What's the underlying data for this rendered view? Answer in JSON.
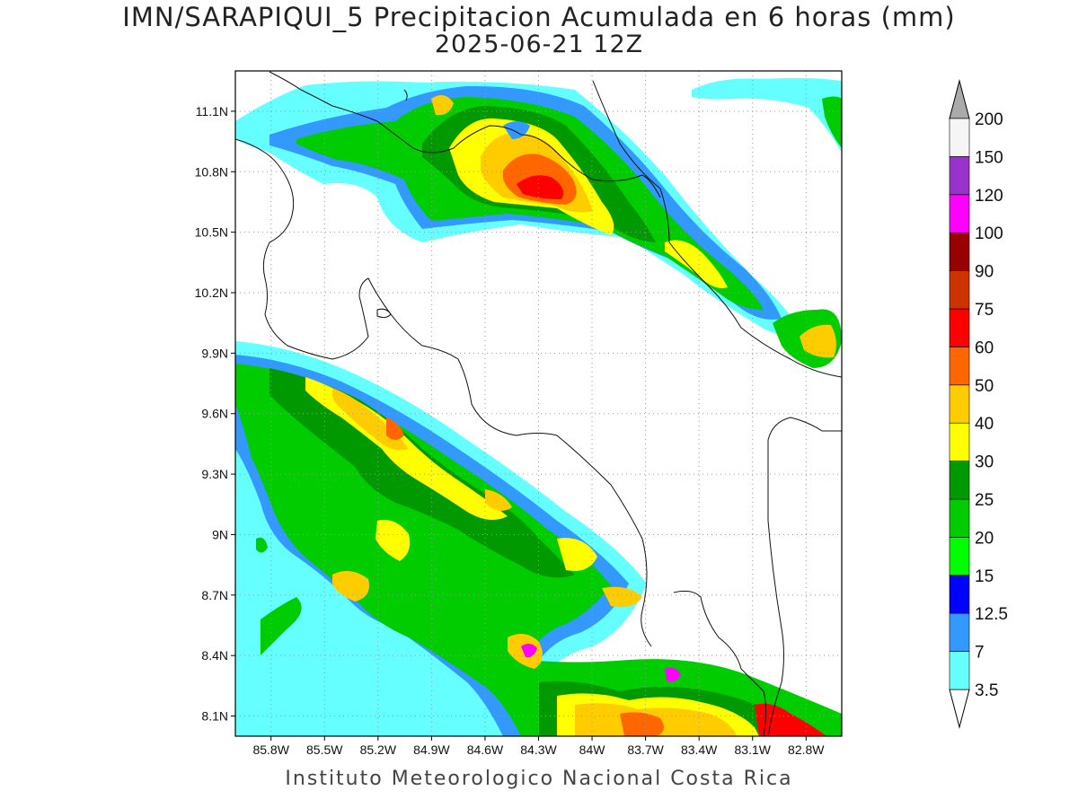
{
  "title": "IMN/SARAPIQUI_5 Precipitacion Acumulada en 6 horas (mm)",
  "subtitle": "2025-06-21 12Z",
  "credit": "Instituto Meteorologico Nacional Costa Rica",
  "lon_range": [
    -86.0,
    -82.6
  ],
  "lat_range": [
    8.0,
    11.3
  ],
  "lon_ticks": [
    {
      "v": -85.8,
      "label": "85.8W"
    },
    {
      "v": -85.5,
      "label": "85.5W"
    },
    {
      "v": -85.2,
      "label": "85.2W"
    },
    {
      "v": -84.9,
      "label": "84.9W"
    },
    {
      "v": -84.6,
      "label": "84.6W"
    },
    {
      "v": -84.3,
      "label": "84.3W"
    },
    {
      "v": -84.0,
      "label": "84W"
    },
    {
      "v": -83.7,
      "label": "83.7W"
    },
    {
      "v": -83.4,
      "label": "83.4W"
    },
    {
      "v": -83.1,
      "label": "83.1W"
    },
    {
      "v": -82.8,
      "label": "82.8W"
    }
  ],
  "lat_ticks": [
    {
      "v": 8.1,
      "label": "8.1N"
    },
    {
      "v": 8.4,
      "label": "8.4N"
    },
    {
      "v": 8.7,
      "label": "8.7N"
    },
    {
      "v": 9.0,
      "label": "9N"
    },
    {
      "v": 9.3,
      "label": "9.3N"
    },
    {
      "v": 9.6,
      "label": "9.6N"
    },
    {
      "v": 9.9,
      "label": "9.9N"
    },
    {
      "v": 10.2,
      "label": "10.2N"
    },
    {
      "v": 10.5,
      "label": "10.5N"
    },
    {
      "v": 10.8,
      "label": "10.8N"
    },
    {
      "v": 11.1,
      "label": "11.1N"
    }
  ],
  "colorbar": {
    "unit": "mm",
    "levels": [
      {
        "label": "3.5",
        "color": "#66ffff"
      },
      {
        "label": "7",
        "color": "#3399ff"
      },
      {
        "label": "12.5",
        "color": "#0000ff"
      },
      {
        "label": "15",
        "color": "#00ff00"
      },
      {
        "label": "20",
        "color": "#00cc00"
      },
      {
        "label": "25",
        "color": "#009900"
      },
      {
        "label": "30",
        "color": "#ffff00"
      },
      {
        "label": "40",
        "color": "#ffcc00"
      },
      {
        "label": "50",
        "color": "#ff6600"
      },
      {
        "label": "60",
        "color": "#ff0000"
      },
      {
        "label": "75",
        "color": "#cc3300"
      },
      {
        "label": "90",
        "color": "#990000"
      },
      {
        "label": "100",
        "color": "#ff00ff"
      },
      {
        "label": "120",
        "color": "#9933cc"
      },
      {
        "label": "150",
        "color": "#f5f5f5"
      },
      {
        "label": "200",
        "color": "#aaaaaa"
      }
    ]
  }
}
